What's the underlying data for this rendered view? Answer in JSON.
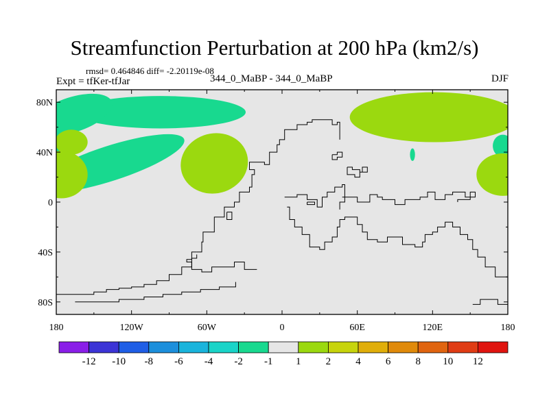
{
  "title": "Streamfunction Perturbation at 200 hPa (km2/s)",
  "stats": "rmsd= 0.464846 diff= -2.20119e-08",
  "experiment": "Expt = tfKer-tfJar",
  "center_label": "344_0_MaBP - 344_0_MaBP",
  "season": "DJF",
  "chart_data": {
    "type": "heatmap",
    "title": "Streamfunction Perturbation at 200 hPa (km2/s)",
    "x_ticks": [
      "180",
      "120W",
      "60W",
      "0",
      "60E",
      "120E",
      "180"
    ],
    "x_values": [
      -180,
      -120,
      -60,
      0,
      60,
      120,
      180
    ],
    "y_ticks": [
      "80N",
      "40N",
      "0",
      "40S",
      "80S"
    ],
    "y_values": [
      80,
      40,
      0,
      -40,
      -80
    ],
    "xlim": [
      -180,
      180
    ],
    "ylim": [
      -90,
      90
    ],
    "background_color": "#e6e6e6",
    "colorbar": {
      "labels": [
        "-12",
        "-10",
        "-8",
        "-6",
        "-4",
        "-2",
        "-1",
        "1",
        "2",
        "4",
        "6",
        "8",
        "10",
        "12"
      ],
      "colors": [
        "#8a1ee8",
        "#3c34d6",
        "#1f5ee6",
        "#1c8fdc",
        "#19b4dc",
        "#19d4c8",
        "#18d98f",
        "#e6e6e6",
        "#9bd90f",
        "#c7d40c",
        "#e0ae0a",
        "#e08a0a",
        "#e0640f",
        "#e03c14",
        "#e0140f"
      ]
    },
    "features": [
      {
        "type": "blob",
        "sign": "negative",
        "class": "-2 to -1",
        "center": [
          -97,
          72
        ],
        "size": [
          68,
          13
        ],
        "rotation_deg": 0,
        "color": "#18d98f"
      },
      {
        "type": "blob",
        "sign": "negative",
        "class": "-2 to -1",
        "center": [
          -167,
          70
        ],
        "size": [
          33,
          14
        ],
        "rotation_deg": -18,
        "color": "#18d98f"
      },
      {
        "type": "blob",
        "sign": "negative",
        "class": "-2 to -1",
        "center": [
          -137,
          31
        ],
        "size": [
          62,
          14
        ],
        "rotation_deg": -18,
        "color": "#18d98f"
      },
      {
        "type": "blob",
        "sign": "negative",
        "class": "-2 to -1",
        "center": [
          -178,
          45
        ],
        "size": [
          6,
          9
        ],
        "rotation_deg": 0,
        "color": "#18d98f"
      },
      {
        "type": "blob",
        "sign": "negative",
        "class": "-2 to -1",
        "center": [
          176,
          45
        ],
        "size": [
          8,
          9
        ],
        "rotation_deg": 0,
        "color": "#18d98f"
      },
      {
        "type": "blob",
        "sign": "negative",
        "class": "-2 to -1",
        "center": [
          104,
          38
        ],
        "size": [
          2,
          5
        ],
        "rotation_deg": 0,
        "color": "#18d98f"
      },
      {
        "type": "blob",
        "sign": "positive",
        "class": "1 to 2",
        "center": [
          121,
          68
        ],
        "size": [
          67,
          20
        ],
        "rotation_deg": 0,
        "color": "#9bd90f"
      },
      {
        "type": "blob",
        "sign": "positive",
        "class": "1 to 2",
        "center": [
          -54,
          31
        ],
        "size": [
          27,
          24
        ],
        "rotation_deg": -15,
        "color": "#9bd90f"
      },
      {
        "type": "blob",
        "sign": "positive",
        "class": "1 to 2",
        "center": [
          -168,
          48
        ],
        "size": [
          13,
          10
        ],
        "rotation_deg": 0,
        "color": "#9bd90f"
      },
      {
        "type": "blob",
        "sign": "positive",
        "class": "1 to 2",
        "center": [
          -176,
          22
        ],
        "size": [
          21,
          19
        ],
        "rotation_deg": 0,
        "color": "#9bd90f"
      },
      {
        "type": "blob",
        "sign": "positive",
        "class": "1 to 2",
        "center": [
          176,
          22
        ],
        "size": [
          21,
          17
        ],
        "rotation_deg": 0,
        "color": "#9bd90f"
      }
    ],
    "coastlines": [
      [
        [
          -180,
          -74
        ],
        [
          -165,
          -74
        ],
        [
          -150,
          -72
        ],
        [
          -140,
          -70
        ],
        [
          -130,
          -69
        ],
        [
          -120,
          -68
        ],
        [
          -110,
          -66
        ],
        [
          -100,
          -63
        ],
        [
          -90,
          -58
        ],
        [
          -80,
          -52
        ],
        [
          -72,
          -45
        ],
        [
          -68,
          -42
        ]
      ],
      [
        [
          -165,
          -80
        ],
        [
          -150,
          -80
        ],
        [
          -130,
          -78
        ],
        [
          -110,
          -76
        ],
        [
          -95,
          -74
        ],
        [
          -80,
          -72
        ],
        [
          -65,
          -70
        ],
        [
          -50,
          -68
        ],
        [
          -37,
          -64
        ]
      ],
      [
        [
          -68,
          -40
        ],
        [
          -64,
          -32
        ],
        [
          -63,
          -24
        ],
        [
          -54,
          -12
        ],
        [
          -46,
          -4
        ],
        [
          -38,
          0
        ],
        [
          -34,
          8
        ],
        [
          -26,
          12
        ],
        [
          -24,
          22
        ],
        [
          -22,
          26
        ],
        [
          -26,
          28
        ],
        [
          -26,
          32
        ],
        [
          -22,
          32
        ],
        [
          -14,
          30
        ],
        [
          -10,
          36
        ],
        [
          -10,
          40
        ],
        [
          -4,
          42
        ],
        [
          -4,
          46
        ],
        [
          -2,
          50
        ],
        [
          2,
          52
        ],
        [
          2,
          58
        ],
        [
          8,
          58
        ],
        [
          12,
          58
        ],
        [
          12,
          62
        ],
        [
          16,
          62
        ],
        [
          20,
          64
        ],
        [
          24,
          66
        ],
        [
          30,
          66
        ],
        [
          36,
          66
        ],
        [
          40,
          62
        ],
        [
          44,
          64
        ],
        [
          46,
          58
        ],
        [
          46,
          50
        ]
      ],
      [
        [
          -68,
          -40
        ],
        [
          -72,
          -46
        ],
        [
          -76,
          -48
        ],
        [
          -72,
          -54
        ],
        [
          -64,
          -56
        ],
        [
          -56,
          -52
        ],
        [
          -38,
          -48
        ],
        [
          -30,
          -54
        ],
        [
          -20,
          -54
        ]
      ],
      [
        [
          4,
          -4
        ],
        [
          6,
          -14
        ],
        [
          10,
          -20
        ],
        [
          16,
          -26
        ],
        [
          22,
          -36
        ],
        [
          30,
          -38
        ],
        [
          34,
          -32
        ],
        [
          40,
          -28
        ],
        [
          44,
          -20
        ],
        [
          46,
          -14
        ],
        [
          50,
          -12
        ],
        [
          56,
          -12
        ],
        [
          60,
          -18
        ],
        [
          64,
          -24
        ],
        [
          68,
          -30
        ],
        [
          76,
          -32
        ],
        [
          84,
          -28
        ],
        [
          88,
          -28
        ],
        [
          96,
          -34
        ],
        [
          106,
          -36
        ],
        [
          112,
          -32
        ],
        [
          114,
          -26
        ],
        [
          120,
          -24
        ],
        [
          124,
          -20
        ],
        [
          130,
          -16
        ],
        [
          136,
          -20
        ],
        [
          142,
          -26
        ],
        [
          148,
          -30
        ],
        [
          152,
          -38
        ],
        [
          156,
          -44
        ],
        [
          162,
          -52
        ],
        [
          170,
          -60
        ],
        [
          180,
          -68
        ]
      ],
      [
        [
          2,
          4
        ],
        [
          12,
          6
        ],
        [
          20,
          2
        ],
        [
          28,
          -4
        ],
        [
          32,
          4
        ],
        [
          36,
          8
        ],
        [
          42,
          12
        ],
        [
          48,
          14
        ],
        [
          50,
          0
        ],
        [
          46,
          -6
        ]
      ],
      [
        [
          48,
          4
        ],
        [
          60,
          0
        ],
        [
          70,
          6
        ],
        [
          76,
          4
        ],
        [
          80,
          2
        ],
        [
          90,
          -2
        ],
        [
          98,
          2
        ],
        [
          104,
          2
        ],
        [
          110,
          4
        ],
        [
          116,
          8
        ],
        [
          122,
          2
        ],
        [
          130,
          6
        ],
        [
          136,
          8
        ],
        [
          146,
          4
        ],
        [
          154,
          8
        ],
        [
          150,
          2
        ],
        [
          140,
          0
        ]
      ],
      [
        [
          52,
          28
        ],
        [
          56,
          26
        ],
        [
          62,
          24
        ],
        [
          64,
          28
        ],
        [
          68,
          24
        ],
        [
          62,
          20
        ],
        [
          58,
          22
        ],
        [
          52,
          28
        ]
      ],
      [
        [
          40,
          38
        ],
        [
          44,
          40
        ],
        [
          48,
          36
        ],
        [
          44,
          34
        ],
        [
          40,
          38
        ]
      ],
      [
        [
          152,
          -82
        ],
        [
          158,
          -78
        ],
        [
          170,
          -78
        ],
        [
          172,
          -82
        ],
        [
          184,
          -82
        ]
      ],
      [
        [
          -44,
          -8
        ],
        [
          -44,
          -14
        ],
        [
          -40,
          -14
        ],
        [
          -40,
          -8
        ],
        [
          -44,
          -8
        ]
      ],
      [
        [
          20,
          0
        ],
        [
          26,
          0
        ],
        [
          26,
          -2
        ],
        [
          20,
          -2
        ],
        [
          20,
          0
        ]
      ]
    ]
  }
}
